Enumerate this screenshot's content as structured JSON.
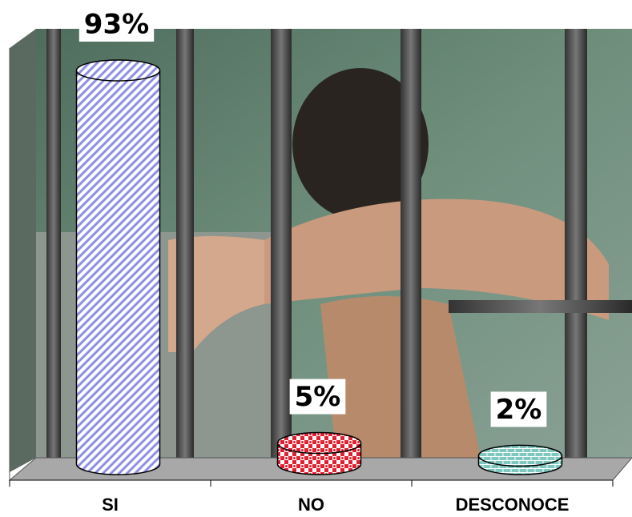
{
  "chart_data": {
    "type": "cylinder-bar",
    "categories": [
      "SI",
      "NO",
      "DESCONOCE"
    ],
    "values": [
      93,
      5,
      2
    ],
    "value_labels": [
      "93%",
      "5%",
      "2%"
    ],
    "colors": [
      "#8e8fe0",
      "#e02030",
      "#7fc8c0"
    ]
  }
}
